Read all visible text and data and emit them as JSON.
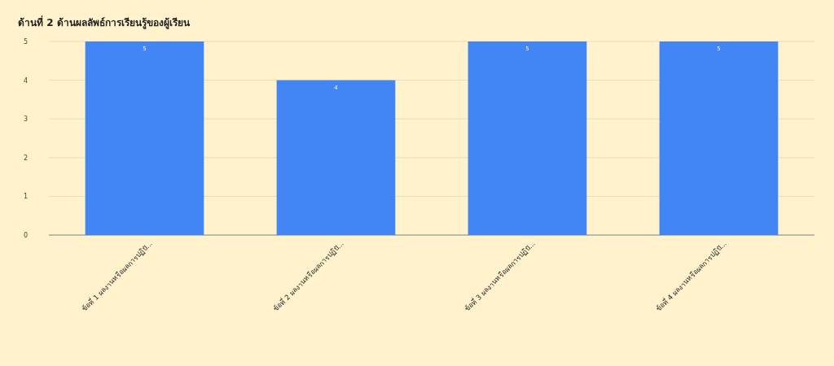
{
  "chart_data": {
    "type": "bar",
    "title": "ด้านที่ 2 ด้านผลลัพธ์การเรียนรู้ของผู้เรียน",
    "categories": [
      "ข้อที่ 1 ผลงานหรือผลการปฏิบั...",
      "ข้อที่ 2 ผลงานหรือผลการปฏิบั...",
      "ข้อที่ 3 ผลงานหรือผลการปฏิบั...",
      "ข้อที่ 4 ผลงานหรือผลการปฏิบั..."
    ],
    "values": [
      5,
      4,
      5,
      5
    ],
    "color": "#4285f4",
    "ylim": [
      0,
      5
    ],
    "yticks": [
      0,
      1,
      2,
      3,
      4,
      5
    ],
    "grid": "y",
    "data_labels": true
  }
}
